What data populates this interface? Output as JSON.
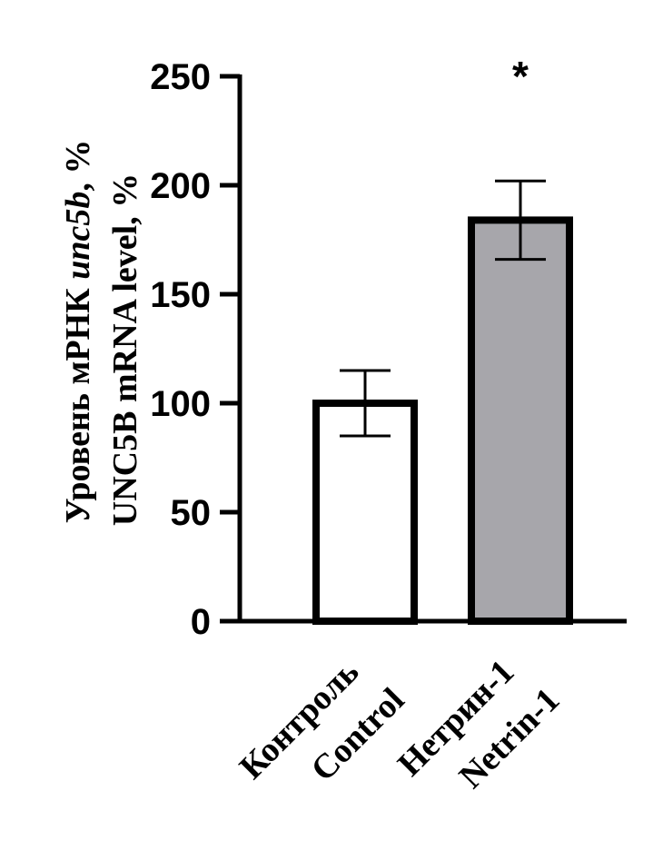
{
  "chart_data": {
    "type": "bar",
    "categories": [
      {
        "label_ru": "Контроль",
        "label_en": "Control"
      },
      {
        "label_ru": "Нетрин-1",
        "label_en": "Netrin-1"
      }
    ],
    "values": [
      100,
      184
    ],
    "errors": [
      15,
      18
    ],
    "bar_colors": [
      "#ffffff",
      "#a7a6ab"
    ],
    "significance": [
      "",
      "*"
    ],
    "ylabel_ru_prefix": "Уровень мРНК ",
    "ylabel_ru_gene": "unc5b",
    "ylabel_ru_suffix": ", %",
    "ylabel_en": "UNC5B mRNA level, %",
    "ylim": [
      0,
      250
    ],
    "yticks": [
      0,
      50,
      100,
      150,
      200,
      250
    ],
    "grid": false
  }
}
